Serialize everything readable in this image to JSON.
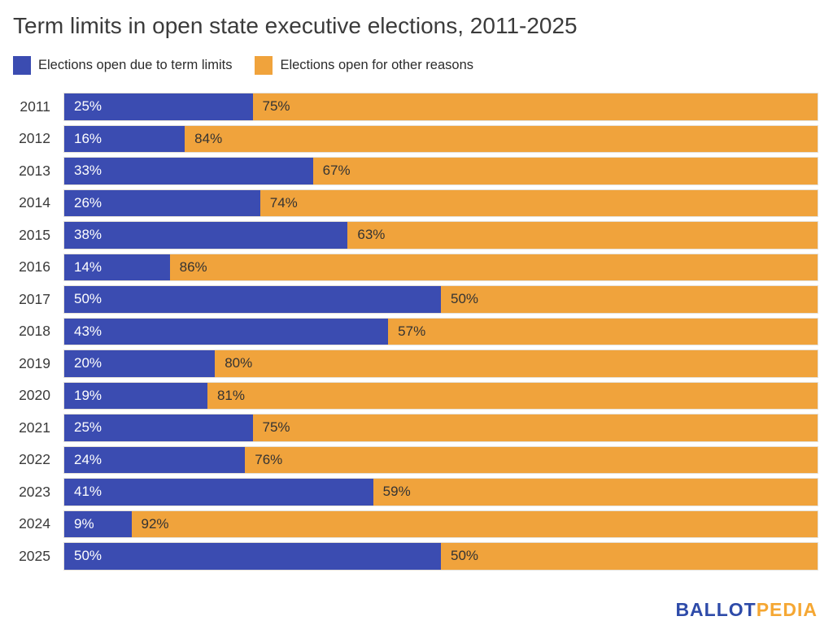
{
  "title": "Term limits in open state executive elections, 2011-2025",
  "colors": {
    "term_limits_blue": "#3B4CB1",
    "other_reasons_orange": "#F0A33C",
    "logo_blue": "#2E4BA9",
    "logo_orange": "#F5A733"
  },
  "legend": {
    "items": [
      {
        "label": "Elections open due to term limits"
      },
      {
        "label": "Elections open for other reasons"
      }
    ]
  },
  "chart_data": {
    "type": "bar",
    "orientation": "horizontal",
    "stacked": true,
    "unit": "percent",
    "categories": [
      "2011",
      "2012",
      "2013",
      "2014",
      "2015",
      "2016",
      "2017",
      "2018",
      "2019",
      "2020",
      "2021",
      "2022",
      "2023",
      "2024",
      "2025"
    ],
    "series": [
      {
        "name": "Elections open due to term limits",
        "color": "#3B4CB1",
        "values": [
          25,
          16,
          33,
          26,
          38,
          14,
          50,
          43,
          20,
          19,
          25,
          24,
          41,
          9,
          50
        ],
        "labels": [
          "25%",
          "16%",
          "33%",
          "26%",
          "38%",
          "14%",
          "50%",
          "43%",
          "20%",
          "19%",
          "25%",
          "24%",
          "41%",
          "9%",
          "50%"
        ]
      },
      {
        "name": "Elections open for other reasons",
        "color": "#F0A33C",
        "values": [
          75,
          84,
          67,
          74,
          63,
          86,
          50,
          57,
          80,
          81,
          75,
          76,
          59,
          92,
          50
        ],
        "labels": [
          "75%",
          "84%",
          "67%",
          "74%",
          "63%",
          "86%",
          "50%",
          "57%",
          "80%",
          "81%",
          "75%",
          "76%",
          "59%",
          "92%",
          "50%"
        ]
      }
    ],
    "title": "Term limits in open state executive elections, 2011-2025",
    "xlabel": "",
    "ylabel": "",
    "xlim": [
      0,
      100
    ],
    "grid": false,
    "legend_position": "top-left"
  },
  "branding": {
    "ballot": "BALLOT",
    "pedia": "PEDIA"
  }
}
